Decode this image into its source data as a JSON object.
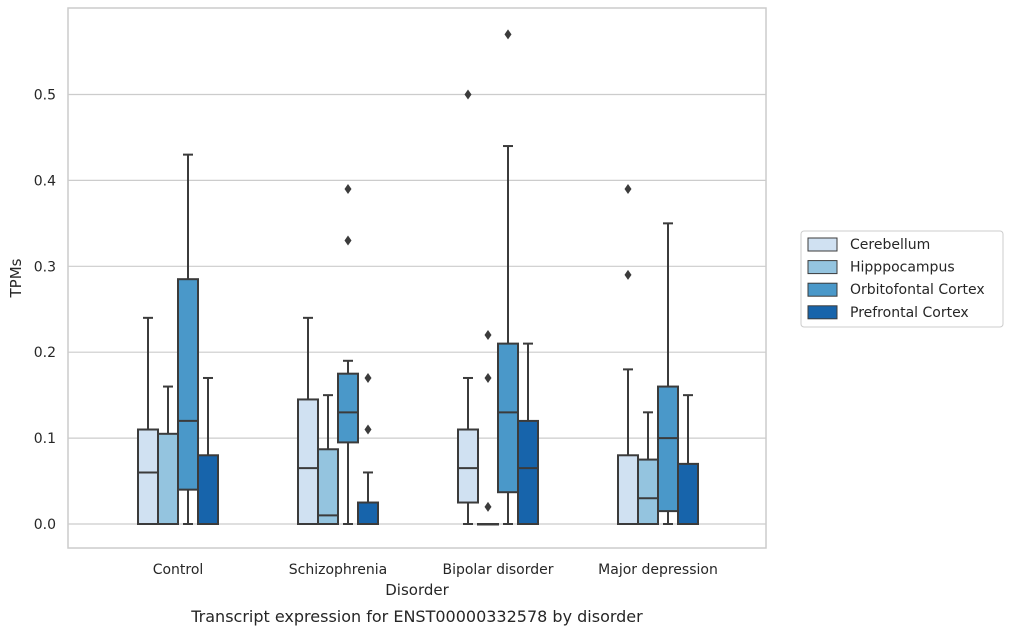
{
  "chart_data": {
    "type": "box",
    "caption": "Transcript expression for ENST00000332578 by disorder",
    "xlabel": "Disorder",
    "ylabel": "TPMs",
    "ylim": [
      -0.03,
      0.6
    ],
    "yticks": [
      "0.0",
      "0.1",
      "0.2",
      "0.3",
      "0.4",
      "0.5"
    ],
    "grid": "horizontal",
    "legend_placement": "right",
    "categories": [
      "Control",
      "Schizophrenia",
      "Bipolar disorder",
      "Major depression"
    ],
    "series": [
      {
        "name": "Cerebellum",
        "color": "#d0e1f2",
        "boxes": [
          {
            "low": 0.0,
            "q1": 0.0,
            "median": 0.06,
            "q3": 0.11,
            "high": 0.24,
            "outliers": []
          },
          {
            "low": 0.0,
            "q1": 0.0,
            "median": 0.065,
            "q3": 0.145,
            "high": 0.24,
            "outliers": []
          },
          {
            "low": 0.0,
            "q1": 0.025,
            "median": 0.065,
            "q3": 0.11,
            "high": 0.17,
            "outliers": [
              0.5
            ]
          },
          {
            "low": 0.0,
            "q1": 0.0,
            "median": 0.0,
            "q3": 0.08,
            "high": 0.18,
            "outliers": [
              0.29,
              0.39
            ]
          }
        ]
      },
      {
        "name": "Hipppocampus",
        "color": "#94c4df",
        "boxes": [
          {
            "low": 0.0,
            "q1": 0.0,
            "median": 0.0,
            "q3": 0.105,
            "high": 0.16,
            "outliers": []
          },
          {
            "low": 0.0,
            "q1": 0.0,
            "median": 0.01,
            "q3": 0.087,
            "high": 0.15,
            "outliers": []
          },
          {
            "low": 0.0,
            "q1": 0.0,
            "median": 0.0,
            "q3": 0.0,
            "high": 0.0,
            "outliers": [
              0.02,
              0.17,
              0.22
            ]
          },
          {
            "low": 0.0,
            "q1": 0.0,
            "median": 0.03,
            "q3": 0.075,
            "high": 0.13,
            "outliers": []
          }
        ]
      },
      {
        "name": "Orbitofontal Cortex",
        "color": "#4a98c9",
        "boxes": [
          {
            "low": 0.0,
            "q1": 0.04,
            "median": 0.12,
            "q3": 0.285,
            "high": 0.43,
            "outliers": []
          },
          {
            "low": 0.0,
            "q1": 0.095,
            "median": 0.13,
            "q3": 0.175,
            "high": 0.19,
            "outliers": [
              0.33,
              0.39
            ]
          },
          {
            "low": 0.0,
            "q1": 0.037,
            "median": 0.13,
            "q3": 0.21,
            "high": 0.44,
            "outliers": [
              0.57
            ]
          },
          {
            "low": 0.0,
            "q1": 0.015,
            "median": 0.1,
            "q3": 0.16,
            "high": 0.35,
            "outliers": []
          }
        ]
      },
      {
        "name": "Prefrontal Cortex",
        "color": "#1764ab",
        "boxes": [
          {
            "low": 0.0,
            "q1": 0.0,
            "median": 0.0,
            "q3": 0.08,
            "high": 0.17,
            "outliers": []
          },
          {
            "low": 0.0,
            "q1": 0.0,
            "median": 0.0,
            "q3": 0.025,
            "high": 0.06,
            "outliers": [
              0.11,
              0.17
            ]
          },
          {
            "low": 0.0,
            "q1": 0.0,
            "median": 0.065,
            "q3": 0.12,
            "high": 0.21,
            "outliers": []
          },
          {
            "low": 0.0,
            "q1": 0.0,
            "median": 0.0,
            "q3": 0.07,
            "high": 0.15,
            "outliers": []
          }
        ]
      }
    ]
  }
}
